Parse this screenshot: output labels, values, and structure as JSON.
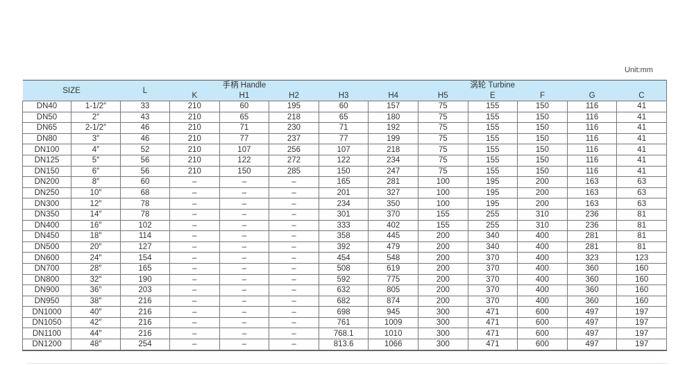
{
  "unit": "Unit:mm",
  "header": {
    "size": "SIZE",
    "l": "L",
    "handle": "手柄 Handle",
    "turbine": "涡轮 Turbine",
    "handle_cols": [
      "K",
      "H1",
      "H2"
    ],
    "turbine_cols": [
      "H3",
      "H4",
      "H5",
      "E",
      "F",
      "G",
      "C"
    ]
  },
  "rows": [
    [
      "DN40",
      "1-1/2″",
      "33",
      "210",
      "60",
      "195",
      "60",
      "157",
      "75",
      "155",
      "150",
      "116",
      "41"
    ],
    [
      "DN50",
      "2″",
      "43",
      "210",
      "65",
      "218",
      "65",
      "180",
      "75",
      "155",
      "150",
      "116",
      "41"
    ],
    [
      "DN65",
      "2-1/2″",
      "46",
      "210",
      "71",
      "230",
      "71",
      "192",
      "75",
      "155",
      "150",
      "116",
      "41"
    ],
    [
      "DN80",
      "3″",
      "46",
      "210",
      "77",
      "237",
      "77",
      "199",
      "75",
      "155",
      "150",
      "116",
      "41"
    ],
    [
      "DN100",
      "4″",
      "52",
      "210",
      "107",
      "256",
      "107",
      "218",
      "75",
      "155",
      "150",
      "116",
      "41"
    ],
    [
      "DN125",
      "5″",
      "56",
      "210",
      "122",
      "272",
      "122",
      "234",
      "75",
      "155",
      "150",
      "116",
      "41"
    ],
    [
      "DN150",
      "6″",
      "56",
      "210",
      "150",
      "285",
      "150",
      "247",
      "75",
      "155",
      "150",
      "116",
      "41"
    ],
    [
      "DN200",
      "8″",
      "60",
      "–",
      "–",
      "–",
      "165",
      "281",
      "100",
      "195",
      "200",
      "163",
      "63"
    ],
    [
      "DN250",
      "10″",
      "68",
      "–",
      "–",
      "–",
      "201",
      "327",
      "100",
      "195",
      "200",
      "163",
      "63"
    ],
    [
      "DN300",
      "12″",
      "78",
      "–",
      "–",
      "–",
      "234",
      "350",
      "100",
      "195",
      "200",
      "163",
      "63"
    ],
    [
      "DN350",
      "14″",
      "78",
      "–",
      "–",
      "–",
      "301",
      "370",
      "155",
      "255",
      "310",
      "236",
      "81"
    ],
    [
      "DN400",
      "16″",
      "102",
      "–",
      "–",
      "–",
      "333",
      "402",
      "155",
      "255",
      "310",
      "236",
      "81"
    ],
    [
      "DN450",
      "18″",
      "114",
      "–",
      "–",
      "–",
      "358",
      "445",
      "200",
      "340",
      "400",
      "281",
      "81"
    ],
    [
      "DN500",
      "20″",
      "127",
      "–",
      "–",
      "–",
      "392",
      "479",
      "200",
      "340",
      "400",
      "281",
      "81"
    ],
    [
      "DN600",
      "24″",
      "154",
      "–",
      "–",
      "–",
      "454",
      "548",
      "200",
      "370",
      "400",
      "323",
      "123"
    ],
    [
      "DN700",
      "28″",
      "165",
      "–",
      "–",
      "–",
      "508",
      "619",
      "200",
      "370",
      "400",
      "360",
      "160"
    ],
    [
      "DN800",
      "32″",
      "190",
      "–",
      "–",
      "–",
      "592",
      "775",
      "200",
      "370",
      "400",
      "360",
      "160"
    ],
    [
      "DN900",
      "36″",
      "203",
      "–",
      "–",
      "–",
      "632",
      "805",
      "200",
      "370",
      "400",
      "360",
      "160"
    ],
    [
      "DN950",
      "38″",
      "216",
      "–",
      "–",
      "–",
      "682",
      "874",
      "200",
      "370",
      "400",
      "360",
      "160"
    ],
    [
      "DN1000",
      "40″",
      "216",
      "–",
      "–",
      "–",
      "698",
      "945",
      "300",
      "471",
      "600",
      "497",
      "197"
    ],
    [
      "DN1050",
      "42″",
      "216",
      "–",
      "–",
      "–",
      "761",
      "1009",
      "300",
      "471",
      "600",
      "497",
      "197"
    ],
    [
      "DN1100",
      "44″",
      "216",
      "–",
      "–",
      "–",
      "768.1",
      "1010",
      "300",
      "471",
      "600",
      "497",
      "197"
    ],
    [
      "DN1200",
      "48″",
      "254",
      "–",
      "–",
      "–",
      "813.6",
      "1066",
      "300",
      "471",
      "600",
      "497",
      "197"
    ]
  ]
}
